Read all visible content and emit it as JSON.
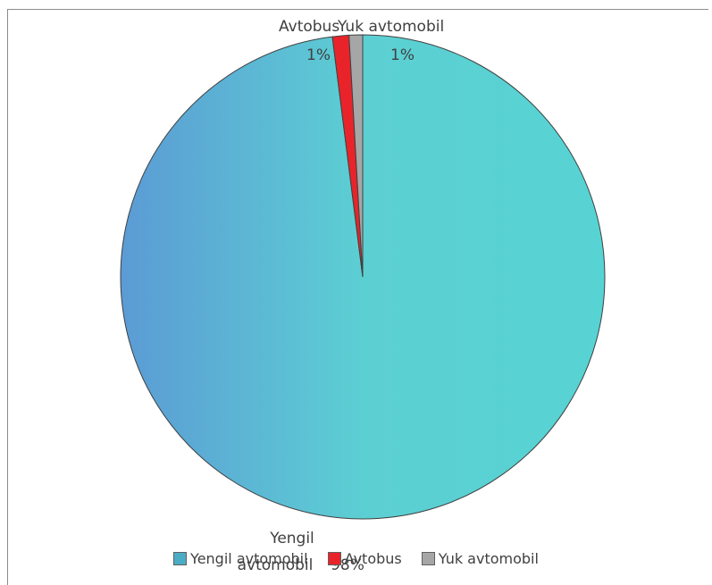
{
  "chart_data": {
    "type": "pie",
    "categories": [
      "Yengil avtomobil",
      "Avtobus",
      "Yuk avtomobil"
    ],
    "values": [
      98,
      1,
      1
    ],
    "value_labels": [
      "98%",
      "1%",
      "1%"
    ],
    "data_labels": [
      {
        "name_lines": [
          "Yengil",
          "avtomobil"
        ],
        "value_label": "98%"
      },
      {
        "name_lines": [
          "Avtobus"
        ],
        "value_label": "1%"
      },
      {
        "name_lines": [
          "Yuk avtomobil"
        ],
        "value_label": "1%"
      }
    ],
    "colors": [
      "#5bc8cf",
      "#e8242a",
      "#a6a6a6"
    ],
    "gradient": [
      "#5b9bd5",
      "#5bd3d3"
    ],
    "legend_position": "bottom",
    "start_angle": "top, clockwise"
  },
  "legend": {
    "items": [
      {
        "label": "Yengil avtomobil",
        "color": "#4bacc6"
      },
      {
        "label": "Avtobus",
        "color": "#e8242a"
      },
      {
        "label": "Yuk avtomobil",
        "color": "#a6a6a6"
      }
    ]
  }
}
